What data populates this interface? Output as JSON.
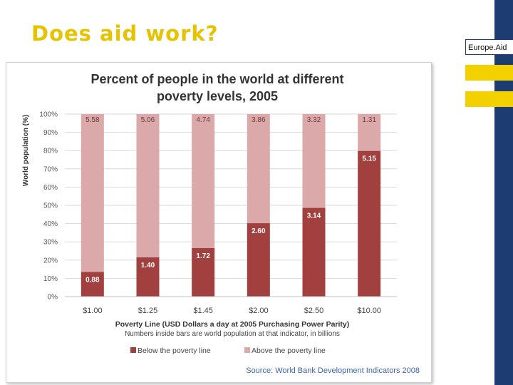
{
  "slide": {
    "title": "Does aid work?",
    "brand_label": "Europe.Aid"
  },
  "colors": {
    "below": "#a23f3f",
    "above": "#dba9a9",
    "title_yellow": "#e6c300",
    "band_blue": "#1d3d72",
    "source_blue": "#3c64b4"
  },
  "chart_data": {
    "type": "bar",
    "stacked": true,
    "title": "Percent of people in the world at different poverty levels, 2005",
    "title_lines": [
      "Percent of people in the world at different",
      "poverty levels, 2005"
    ],
    "xlabel": "Poverty Line (USD Dollars a day at 2005 Purchasing Power Parity)",
    "ylabel": "World population (%)",
    "note": "Numbers inside bars are world population at that indicator, in billions",
    "source": "Source: World Bank Development Indicators 2008",
    "ylim": [
      0,
      100
    ],
    "y_ticks": [
      "0%",
      "10%",
      "20%",
      "30%",
      "40%",
      "50%",
      "60%",
      "70%",
      "80%",
      "90%",
      "100%"
    ],
    "grid": true,
    "legend_position": "bottom",
    "categories": [
      "$1.00",
      "$1.25",
      "$1.45",
      "$2.00",
      "$2.50",
      "$10.00"
    ],
    "series": [
      {
        "name": "Below the poverty line",
        "values": [
          13.5,
          21.5,
          26.6,
          40.2,
          48.6,
          79.8
        ],
        "labels": [
          "0.88",
          "1.40",
          "1.72",
          "2.60",
          "3.14",
          "5.15"
        ]
      },
      {
        "name": "Above the poverty line",
        "values": [
          86.5,
          78.5,
          73.4,
          59.8,
          51.4,
          20.2
        ],
        "labels": [
          "5.58",
          "5.06",
          "4.74",
          "3.86",
          "3.32",
          "1.31"
        ]
      }
    ]
  }
}
